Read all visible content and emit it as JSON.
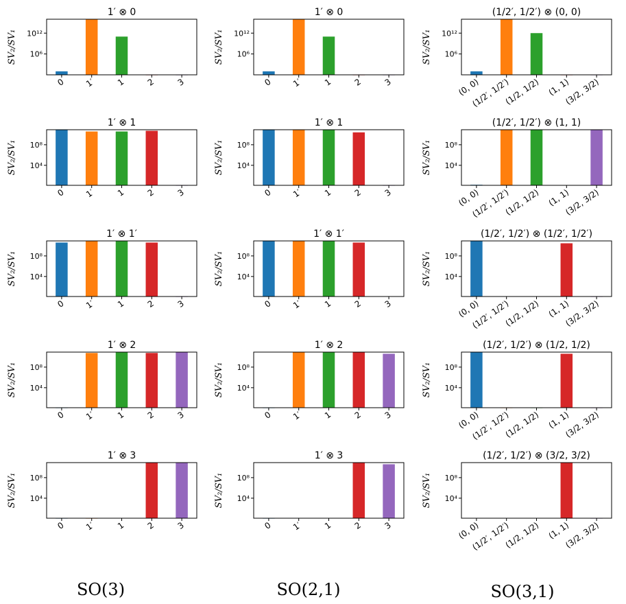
{
  "colors": [
    "#1f77b4",
    "#ff7f0e",
    "#2ca02c",
    "#d62728",
    "#9467bd"
  ],
  "ylabel": "SV₂/SV₁",
  "column_labels": [
    "SO(3)",
    "SO(2,1)",
    "SO(3,1)"
  ],
  "chart_data": [
    {
      "type": "bar",
      "group": "SO(3)",
      "title": "1′ ⊗ 0",
      "categories": [
        "0",
        "1′",
        "1",
        "2",
        "3"
      ],
      "values": [
        1.0,
        1000000000000000.0,
        10000000000.0,
        0.1,
        0.1
      ],
      "yscale": "log",
      "ylim": [
        0.1,
        1000000000000000.0
      ],
      "yticks": [
        "10⁶",
        "10¹²"
      ],
      "ylabel": "SV₂/SV₁"
    },
    {
      "type": "bar",
      "group": "SO(3)",
      "title": "1′ ⊗ 1",
      "categories": [
        "0",
        "1′",
        "1",
        "2",
        "3"
      ],
      "values": [
        300000000000.0,
        130000000000.0,
        130000000000.0,
        180000000000.0,
        1
      ],
      "yscale": "log",
      "ylim": [
        1,
        300000000000.0
      ],
      "yticks": [
        "10⁴",
        "10⁸"
      ],
      "ylabel": "SV₂/SV₁"
    },
    {
      "type": "bar",
      "group": "SO(3)",
      "title": "1′ ⊗ 1′",
      "categories": [
        "0",
        "1′",
        "1",
        "2",
        "3"
      ],
      "values": [
        70000000000.0,
        140000000000.0,
        140000000000.0,
        70000000000.0,
        1
      ],
      "yscale": "log",
      "ylim": [
        1,
        150000000000.0
      ],
      "yticks": [
        "10⁴",
        "10⁸"
      ],
      "ylabel": "SV₂/SV₁"
    },
    {
      "type": "bar",
      "group": "SO(3)",
      "title": "1′ ⊗ 2",
      "categories": [
        "0",
        "1′",
        "1",
        "2",
        "3"
      ],
      "values": [
        1,
        100000000000.0,
        150000000000.0,
        100000000000.0,
        150000000000.0
      ],
      "yscale": "log",
      "ylim": [
        1,
        150000000000.0
      ],
      "yticks": [
        "10⁴",
        "10⁸"
      ],
      "ylabel": "SV₂/SV₁"
    },
    {
      "type": "bar",
      "group": "SO(3)",
      "title": "1′ ⊗ 3",
      "categories": [
        "0",
        "1′",
        "1",
        "2",
        "3"
      ],
      "values": [
        1,
        1,
        1.05,
        150000000000.0,
        150000000000.0
      ],
      "yscale": "log",
      "ylim": [
        1,
        150000000000.0
      ],
      "yticks": [
        "10⁴",
        "10⁸"
      ],
      "ylabel": "SV₂/SV₁"
    },
    {
      "type": "bar",
      "group": "SO(2,1)",
      "title": "1′ ⊗ 0",
      "categories": [
        "0",
        "1′",
        "1",
        "2",
        "3"
      ],
      "values": [
        1,
        1000000000000000.0,
        10000000000.0,
        0.1,
        0.1
      ],
      "yscale": "log",
      "ylim": [
        0.1,
        1000000000000000.0
      ],
      "yticks": [
        "10⁶",
        "10¹²"
      ],
      "ylabel": "SV₂/SV₁"
    },
    {
      "type": "bar",
      "group": "SO(2,1)",
      "title": "1′ ⊗ 1",
      "categories": [
        "0",
        "1′",
        "1",
        "2",
        "3"
      ],
      "values": [
        250000000000.0,
        250000000000.0,
        250000000000.0,
        80000000000.0,
        1
      ],
      "yscale": "log",
      "ylim": [
        1,
        280000000000.0
      ],
      "yticks": [
        "10⁴",
        "10⁸"
      ],
      "ylabel": "SV₂/SV₁"
    },
    {
      "type": "bar",
      "group": "SO(2,1)",
      "title": "1′ ⊗ 1′",
      "categories": [
        "0",
        "1′",
        "1",
        "2",
        "3"
      ],
      "values": [
        140000000000.0,
        140000000000.0,
        140000000000.0,
        70000000000.0,
        1.05
      ],
      "yscale": "log",
      "ylim": [
        1,
        150000000000.0
      ],
      "yticks": [
        "10⁴",
        "10⁸"
      ],
      "ylabel": "SV₂/SV₁"
    },
    {
      "type": "bar",
      "group": "SO(2,1)",
      "title": "1′ ⊗ 2",
      "categories": [
        "0",
        "1′",
        "1",
        "2",
        "3"
      ],
      "values": [
        1,
        150000000000.0,
        150000000000.0,
        150000000000.0,
        70000000000.0
      ],
      "yscale": "log",
      "ylim": [
        1,
        150000000000.0
      ],
      "yticks": [
        "10⁴",
        "10⁸"
      ],
      "ylabel": "SV₂/SV₁"
    },
    {
      "type": "bar",
      "group": "SO(2,1)",
      "title": "1′ ⊗ 3",
      "categories": [
        "0",
        "1′",
        "1",
        "2",
        "3"
      ],
      "values": [
        1,
        1.05,
        1.05,
        150000000000.0,
        70000000000.0
      ],
      "yscale": "log",
      "ylim": [
        1,
        150000000000.0
      ],
      "yticks": [
        "10⁴",
        "10⁸"
      ],
      "ylabel": "SV₂/SV₁"
    },
    {
      "type": "bar",
      "group": "SO(3,1)",
      "title": "(1/2′, 1/2′) ⊗ (0, 0)",
      "categories": [
        "(0, 0)",
        "(1/2′, 1/2′)",
        "(1/2, 1/2)",
        "(1, 1)",
        "(3/2, 3/2)"
      ],
      "values": [
        1,
        1000000000000000.0,
        100000000000.0,
        0.1,
        0.1
      ],
      "yscale": "log",
      "ylim": [
        0.1,
        1000000000000000.0
      ],
      "yticks": [
        "10⁶",
        "10¹²"
      ],
      "ylabel": "SV₂/SV₁"
    },
    {
      "type": "bar",
      "group": "SO(3,1)",
      "title": "(1/2′, 1/2′) ⊗ (1, 1)",
      "categories": [
        "(0, 0)",
        "(1/2′, 1/2′)",
        "(1/2, 1/2)",
        "(1, 1)",
        "(3/2, 3/2)"
      ],
      "values": [
        1.3,
        300000000000.0,
        300000000000.0,
        1.1,
        300000000000.0
      ],
      "yscale": "log",
      "ylim": [
        1,
        300000000000.0
      ],
      "yticks": [
        "10⁴",
        "10⁸"
      ],
      "ylabel": "SV₂/SV₁"
    },
    {
      "type": "bar",
      "group": "SO(3,1)",
      "title": "(1/2′, 1/2′) ⊗ (1/2′, 1/2′)",
      "categories": [
        "(0, 0)",
        "(1/2′, 1/2′)",
        "(1/2, 1/2)",
        "(1, 1)",
        "(3/2, 3/2)"
      ],
      "values": [
        150000000000.0,
        1.05,
        1.05,
        50000000000.0,
        1
      ],
      "yscale": "log",
      "ylim": [
        1,
        150000000000.0
      ],
      "yticks": [
        "10⁴",
        "10⁸"
      ],
      "ylabel": "SV₂/SV₁"
    },
    {
      "type": "bar",
      "group": "SO(3,1)",
      "title": "(1/2′, 1/2′) ⊗ (1/2, 1/2)",
      "categories": [
        "(0, 0)",
        "(1/2′, 1/2′)",
        "(1/2, 1/2)",
        "(1, 1)",
        "(3/2, 3/2)"
      ],
      "values": [
        150000000000.0,
        1,
        1,
        70000000000.0,
        1
      ],
      "yscale": "log",
      "ylim": [
        1,
        150000000000.0
      ],
      "yticks": [
        "10⁴",
        "10⁸"
      ],
      "ylabel": "SV₂/SV₁"
    },
    {
      "type": "bar",
      "group": "SO(3,1)",
      "title": "(1/2′, 1/2′) ⊗ (3/2, 3/2)",
      "categories": [
        "(0, 0)",
        "(1/2′, 1/2′)",
        "(1/2, 1/2)",
        "(1, 1)",
        "(3/2, 3/2)"
      ],
      "values": [
        1.05,
        1.05,
        1.05,
        150000000000.0,
        1
      ],
      "yscale": "log",
      "ylim": [
        1,
        150000000000.0
      ],
      "yticks": [
        "10⁴",
        "10⁸"
      ],
      "ylabel": "SV₂/SV₁"
    }
  ]
}
